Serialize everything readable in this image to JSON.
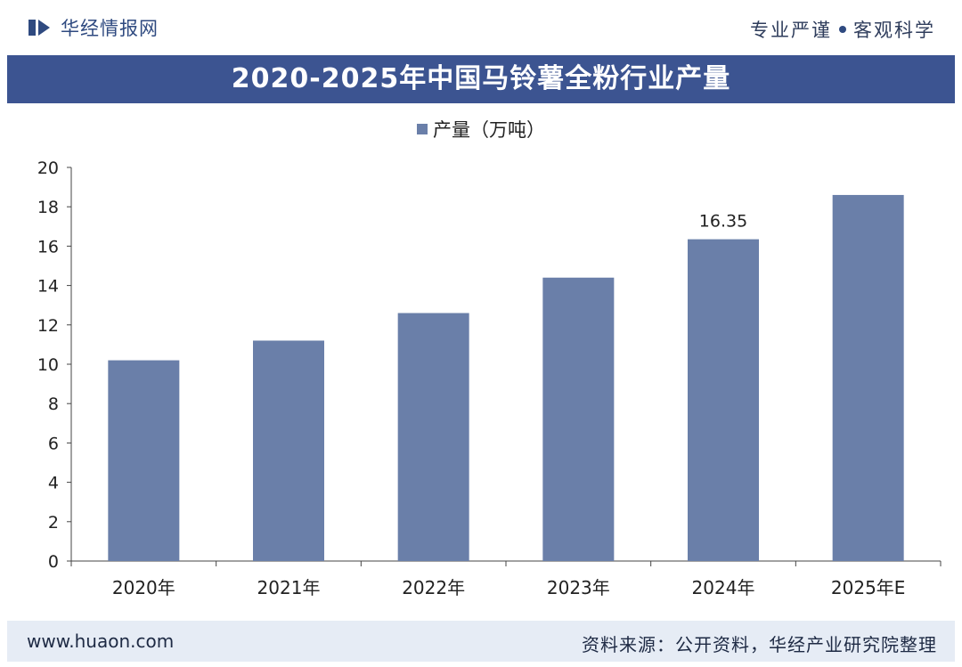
{
  "header": {
    "brand": "华经情报网",
    "tagline_left": "专业严谨",
    "tagline_right": "客观科学"
  },
  "footer": {
    "website": "www.huaon.com",
    "source": "资料来源：公开资料，华经产业研究院整理"
  },
  "chart_data": {
    "type": "bar",
    "title": "2020-2025年中国马铃薯全粉行业产量",
    "categories": [
      "2020年",
      "2021年",
      "2022年",
      "2023年",
      "2024年",
      "2025年E"
    ],
    "series": [
      {
        "name": "产量（万吨）",
        "values": [
          10.2,
          11.2,
          12.6,
          14.4,
          16.35,
          18.6
        ]
      }
    ],
    "data_labels": [
      {
        "category": "2024年",
        "text": "16.35"
      }
    ],
    "ylim": [
      0,
      20
    ],
    "yticks": [
      0,
      2,
      4,
      6,
      8,
      10,
      12,
      14,
      16,
      18,
      20
    ],
    "grid": false,
    "legend_position": "top-center",
    "bar_color": "#6a7fa9"
  }
}
